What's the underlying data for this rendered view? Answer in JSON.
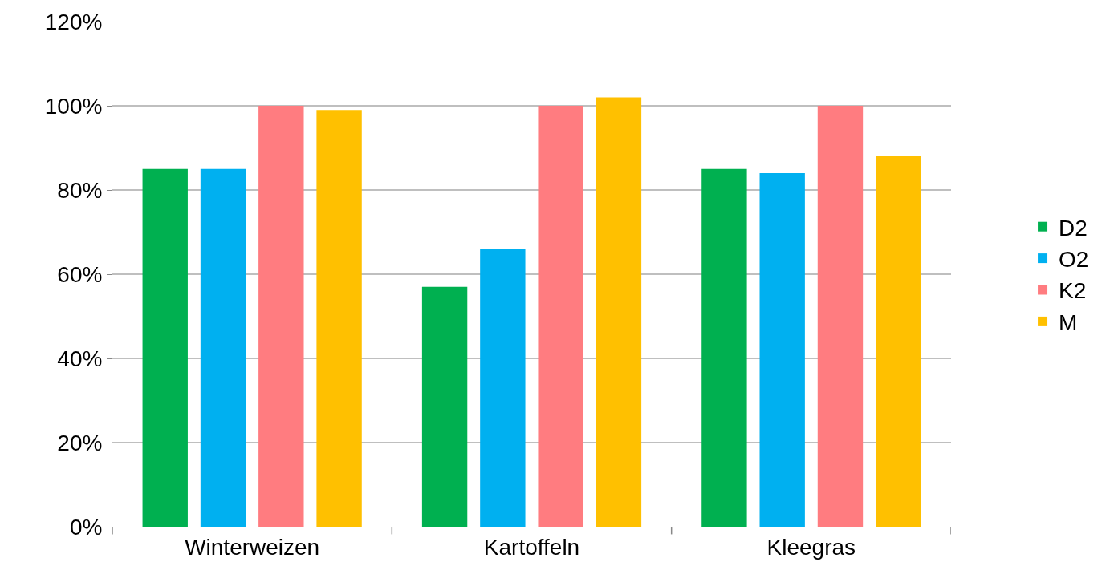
{
  "chart_data": {
    "type": "bar",
    "categories": [
      "Winterweizen",
      "Kartoffeln",
      "Kleegras"
    ],
    "series": [
      {
        "name": "D2",
        "color": "#00b050",
        "values": [
          85,
          57,
          85
        ]
      },
      {
        "name": "O2",
        "color": "#00b0f0",
        "values": [
          85,
          66,
          84
        ]
      },
      {
        "name": "K2",
        "color": "#ff7c80",
        "values": [
          100,
          100,
          100
        ]
      },
      {
        "name": "M",
        "color": "#ffc000",
        "values": [
          99,
          102,
          88
        ]
      }
    ],
    "ylim": [
      0,
      120
    ],
    "yticks": [
      {
        "value": 0,
        "label": "0%"
      },
      {
        "value": 20,
        "label": "20%"
      },
      {
        "value": 40,
        "label": "40%"
      },
      {
        "value": 60,
        "label": "60%"
      },
      {
        "value": 80,
        "label": "80%"
      },
      {
        "value": 100,
        "label": "100%"
      },
      {
        "value": 120,
        "label": "120%"
      }
    ],
    "grid": "y",
    "legend": "right"
  }
}
